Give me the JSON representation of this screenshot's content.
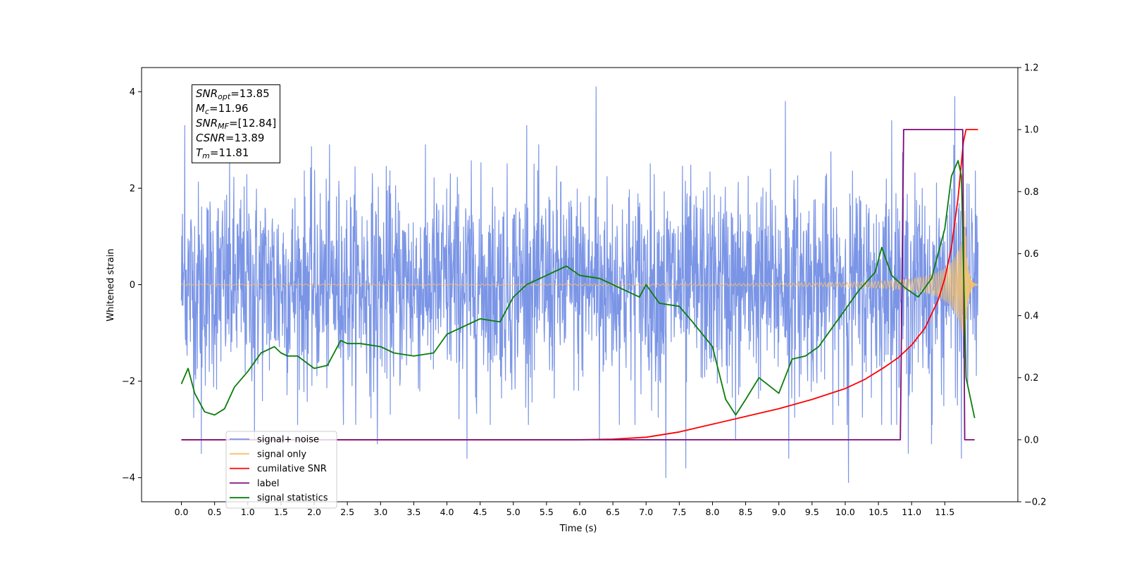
{
  "chart_data": {
    "type": "line",
    "xlabel": "Time (s)",
    "ylabel_left": "Whitened strain",
    "xlim": [
      -0.6,
      12.6
    ],
    "ylim_left": [
      -4.5,
      4.5
    ],
    "ylim_right": [
      -0.2,
      1.2
    ],
    "x_ticks": [
      "0.0",
      "0.5",
      "1.0",
      "1.5",
      "2.0",
      "2.5",
      "3.0",
      "3.5",
      "4.0",
      "4.5",
      "5.0",
      "5.5",
      "6.0",
      "6.5",
      "7.0",
      "7.5",
      "8.0",
      "8.5",
      "9.0",
      "9.5",
      "10.0",
      "10.5",
      "11.0",
      "11.5"
    ],
    "y_ticks_left": [
      "4",
      "2",
      "0",
      "−2",
      "−4"
    ],
    "y_ticks_right": [
      "1.2",
      "1.0",
      "0.8",
      "0.6",
      "0.4",
      "0.2",
      "0.0",
      "−0.2"
    ],
    "grid": false,
    "legend_position": "lower-left",
    "annotation": {
      "snr_opt": {
        "base": "SNR",
        "sub": "opt",
        "value": "=13.85"
      },
      "mc": {
        "base": "M",
        "sub": "c",
        "value": "=11.96"
      },
      "snr_mf": {
        "base": "SNR",
        "sub": "MF",
        "value": "=[12.84]"
      },
      "csnr": {
        "base": "CSNR",
        "value": "=13.89"
      },
      "tm": {
        "base": "T",
        "sub": "m",
        "value": "=11.81"
      }
    },
    "series": [
      {
        "name": "signal+ noise",
        "color": "#7b95e6",
        "axis": "left",
        "kind": "noise",
        "noise_sigma": 1.05,
        "x_range": [
          0.0,
          12.0
        ],
        "peaks": [
          [
            0.05,
            3.3
          ],
          [
            0.3,
            -3.5
          ],
          [
            1.1,
            -3.2
          ],
          [
            2.95,
            -3.3
          ],
          [
            4.05,
            2.3
          ],
          [
            4.3,
            -3.6
          ],
          [
            5.2,
            3.3
          ],
          [
            6.25,
            4.1
          ],
          [
            6.3,
            -3.2
          ],
          [
            7.3,
            -4.0
          ],
          [
            7.6,
            -3.8
          ],
          [
            8.35,
            -3.2
          ],
          [
            9.1,
            3.8
          ],
          [
            9.15,
            -3.6
          ],
          [
            10.05,
            -4.1
          ],
          [
            10.7,
            3.4
          ],
          [
            10.95,
            -3.5
          ],
          [
            11.3,
            -3.3
          ],
          [
            11.65,
            3.9
          ],
          [
            11.75,
            -3.6
          ]
        ]
      },
      {
        "name": "signal only",
        "color": "#f5c16c",
        "axis": "left",
        "kind": "chirp",
        "x_range": [
          0.0,
          12.0
        ],
        "amplitude_start": 0.01,
        "amplitude_peak": 1.9,
        "t_merge": 11.8
      },
      {
        "name": "cumilative SNR",
        "color": "#ff0000",
        "axis": "right",
        "x": [
          0.0,
          6.0,
          6.5,
          7.0,
          7.5,
          8.0,
          8.5,
          9.0,
          9.5,
          10.0,
          10.3,
          10.6,
          10.8,
          11.0,
          11.2,
          11.4,
          11.5,
          11.6,
          11.7,
          11.78,
          11.82,
          12.0
        ],
        "values": [
          0.0,
          0.0,
          0.002,
          0.008,
          0.025,
          0.05,
          0.075,
          0.1,
          0.13,
          0.165,
          0.195,
          0.235,
          0.265,
          0.305,
          0.36,
          0.45,
          0.52,
          0.62,
          0.78,
          0.96,
          1.0,
          1.0
        ]
      },
      {
        "name": "label",
        "color": "#7b0b7b",
        "axis": "right",
        "x": [
          0.0,
          10.83,
          10.88,
          11.77,
          11.8,
          11.95
        ],
        "values": [
          0.0,
          0.0,
          1.0,
          1.0,
          0.0,
          0.0
        ]
      },
      {
        "name": "signal statistics",
        "color": "#0a7d0a",
        "axis": "right",
        "x": [
          0.0,
          0.1,
          0.2,
          0.35,
          0.5,
          0.65,
          0.8,
          1.0,
          1.2,
          1.4,
          1.5,
          1.6,
          1.75,
          2.0,
          2.2,
          2.4,
          2.5,
          2.7,
          3.0,
          3.2,
          3.5,
          3.8,
          4.0,
          4.2,
          4.5,
          4.8,
          5.0,
          5.2,
          5.5,
          5.7,
          5.8,
          6.0,
          6.3,
          6.5,
          6.7,
          6.9,
          7.0,
          7.2,
          7.5,
          7.7,
          8.0,
          8.2,
          8.35,
          8.5,
          8.7,
          9.0,
          9.2,
          9.4,
          9.6,
          9.8,
          10.0,
          10.2,
          10.45,
          10.55,
          10.7,
          10.9,
          11.1,
          11.3,
          11.5,
          11.6,
          11.7,
          11.75,
          11.82,
          11.95
        ],
        "values": [
          0.18,
          0.23,
          0.15,
          0.09,
          0.08,
          0.1,
          0.17,
          0.22,
          0.28,
          0.3,
          0.28,
          0.27,
          0.27,
          0.23,
          0.24,
          0.32,
          0.31,
          0.31,
          0.3,
          0.28,
          0.27,
          0.28,
          0.34,
          0.36,
          0.39,
          0.38,
          0.46,
          0.5,
          0.53,
          0.55,
          0.56,
          0.53,
          0.52,
          0.5,
          0.48,
          0.46,
          0.5,
          0.44,
          0.43,
          0.38,
          0.3,
          0.13,
          0.08,
          0.13,
          0.2,
          0.15,
          0.26,
          0.27,
          0.3,
          0.36,
          0.42,
          0.48,
          0.54,
          0.62,
          0.53,
          0.49,
          0.46,
          0.52,
          0.68,
          0.85,
          0.9,
          0.85,
          0.2,
          0.07
        ]
      }
    ]
  }
}
